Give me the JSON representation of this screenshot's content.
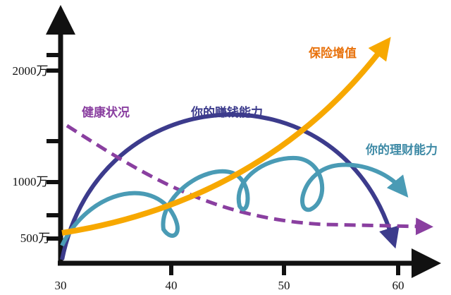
{
  "x_axis": {
    "labels": [
      "30",
      "40",
      "50",
      "60"
    ]
  },
  "y_axis": {
    "labels": [
      "500万",
      "1000万",
      "2000万"
    ]
  },
  "curves": [
    {
      "label": "保险增值"
    },
    {
      "label": "健康状况"
    },
    {
      "label": "你的赚钱能力"
    },
    {
      "label": "你的理财能力"
    }
  ]
}
